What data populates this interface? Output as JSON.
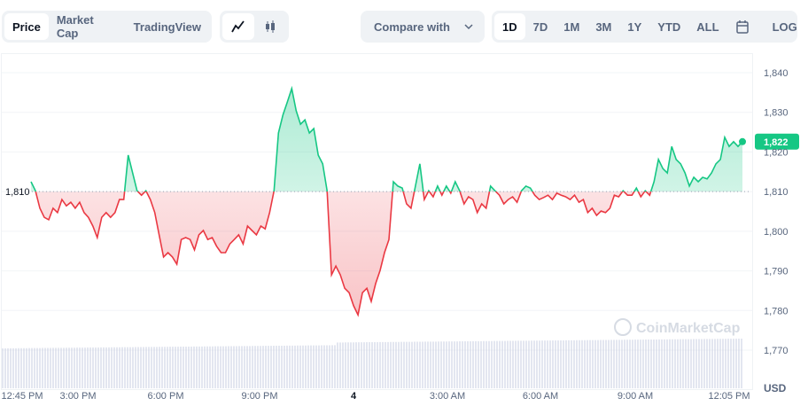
{
  "toolbar": {
    "view_tabs": [
      {
        "label": "Price",
        "active": true
      },
      {
        "label": "Market Cap",
        "active": false
      },
      {
        "label": "TradingView",
        "active": false
      }
    ],
    "chart_types": [
      {
        "icon": "line-chart-icon",
        "active": true
      },
      {
        "icon": "candlestick-icon",
        "active": false
      }
    ],
    "compare_label": "Compare with",
    "ranges": [
      {
        "label": "1D",
        "active": true
      },
      {
        "label": "7D"
      },
      {
        "label": "1M"
      },
      {
        "label": "3M"
      },
      {
        "label": "1Y"
      },
      {
        "label": "YTD"
      },
      {
        "label": "ALL"
      }
    ],
    "calendar_icon": "calendar-icon",
    "log_label": "LOG"
  },
  "watermark": "CoinMarketCap",
  "chart_data": {
    "type": "line",
    "ylim": [
      1765,
      1845
    ],
    "y_ticks": [
      "1,840",
      "1,830",
      "1,820",
      "1,810",
      "1,800",
      "1,790",
      "1,780",
      "1,770"
    ],
    "y_tick_values": [
      1840,
      1830,
      1820,
      1810,
      1800,
      1790,
      1780,
      1770
    ],
    "x_ticks": [
      "12:45 PM",
      "3:00 PM",
      "6:00 PM",
      "9:00 PM",
      "4",
      "3:00 AM",
      "6:00 AM",
      "9:00 AM",
      "12:05 PM"
    ],
    "currency": "USD",
    "reference_price": 1810,
    "reference_label": "1,810",
    "current_price_label": "1,822",
    "colors": {
      "up": "#16c784",
      "down": "#ea3943",
      "volume": "#c7cde0"
    },
    "prices": [
      1812.5,
      1810.2,
      1805.8,
      1803.5,
      1802.9,
      1805.8,
      1804.7,
      1808.0,
      1806.4,
      1807.3,
      1805.8,
      1807.3,
      1804.7,
      1803.5,
      1801.3,
      1798.4,
      1803.5,
      1804.7,
      1803.5,
      1804.7,
      1808.0,
      1808.0,
      1819.2,
      1814.7,
      1810.2,
      1809.1,
      1810.2,
      1808.0,
      1804.7,
      1799.1,
      1793.5,
      1794.6,
      1793.5,
      1791.7,
      1797.9,
      1798.4,
      1797.9,
      1795.3,
      1799.1,
      1800.2,
      1797.9,
      1798.4,
      1796.2,
      1794.6,
      1794.6,
      1796.8,
      1797.9,
      1799.1,
      1796.8,
      1801.3,
      1800.2,
      1799.1,
      1801.3,
      1800.6,
      1804.7,
      1810.2,
      1824.8,
      1829.3,
      1832.6,
      1836.0,
      1830.4,
      1827.0,
      1828.1,
      1824.8,
      1825.9,
      1819.2,
      1817.0,
      1810.2,
      1789.0,
      1791.2,
      1789.0,
      1785.6,
      1784.5,
      1781.2,
      1778.9,
      1784.5,
      1785.6,
      1782.3,
      1786.8,
      1790.1,
      1794.6,
      1797.9,
      1812.5,
      1811.4,
      1810.9,
      1806.9,
      1805.8,
      1811.4,
      1817.0,
      1808.0,
      1810.2,
      1808.7,
      1811.4,
      1809.1,
      1811.4,
      1809.6,
      1812.5,
      1810.2,
      1806.9,
      1808.7,
      1808.0,
      1804.7,
      1806.9,
      1805.8,
      1811.4,
      1810.2,
      1809.1,
      1806.9,
      1808.0,
      1808.7,
      1807.3,
      1810.2,
      1811.4,
      1810.9,
      1809.1,
      1808.0,
      1808.5,
      1809.1,
      1808.0,
      1809.6,
      1809.1,
      1808.7,
      1808.0,
      1809.1,
      1807.3,
      1808.0,
      1804.7,
      1805.8,
      1804.0,
      1805.1,
      1804.7,
      1805.8,
      1809.1,
      1808.7,
      1810.2,
      1809.1,
      1809.1,
      1810.9,
      1808.7,
      1810.2,
      1809.1,
      1812.5,
      1818.1,
      1815.8,
      1814.7,
      1821.4,
      1818.1,
      1817.0,
      1814.7,
      1811.4,
      1813.6,
      1812.5,
      1813.6,
      1813.2,
      1814.7,
      1817.0,
      1818.1,
      1823.7,
      1821.4,
      1822.6,
      1821.4,
      1822.6
    ]
  }
}
